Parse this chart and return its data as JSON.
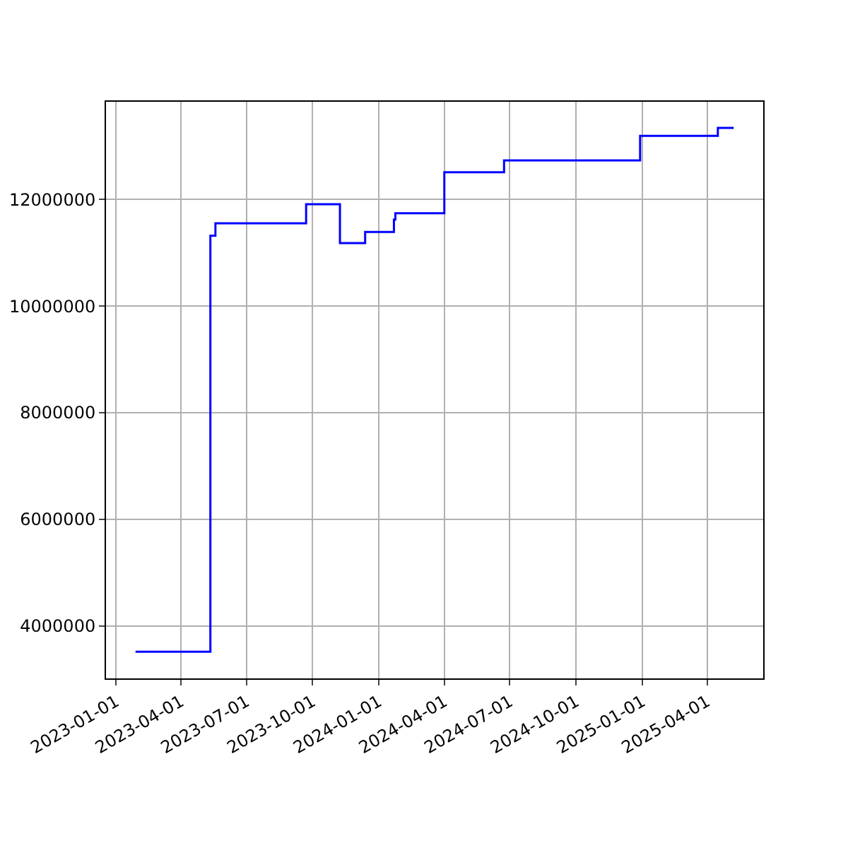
{
  "chart_data": {
    "type": "step",
    "x": [
      "2023-01-28",
      "2023-05-12",
      "2023-05-19",
      "2023-09-22",
      "2023-11-08",
      "2023-12-13",
      "2024-01-22",
      "2024-01-24",
      "2024-04-01",
      "2024-06-23",
      "2024-12-29",
      "2025-04-16",
      "2025-05-08"
    ],
    "series": [
      {
        "color": "#0000ff",
        "values": [
          3520000,
          11320000,
          11550000,
          11910000,
          11180000,
          11390000,
          11620000,
          11740000,
          12510000,
          12730000,
          13190000,
          13340000,
          13340000
        ]
      }
    ],
    "xlim": [
      "2022-12-18",
      "2025-06-18"
    ],
    "xticks": [
      "2023-01-01",
      "2023-04-01",
      "2023-07-01",
      "2023-10-01",
      "2024-01-01",
      "2024-04-01",
      "2024-07-01",
      "2024-10-01",
      "2025-01-01",
      "2025-04-01"
    ],
    "ylim": [
      3020000,
      13830000
    ],
    "yticks": [
      4000000,
      6000000,
      8000000,
      10000000,
      12000000
    ],
    "grid": true
  }
}
